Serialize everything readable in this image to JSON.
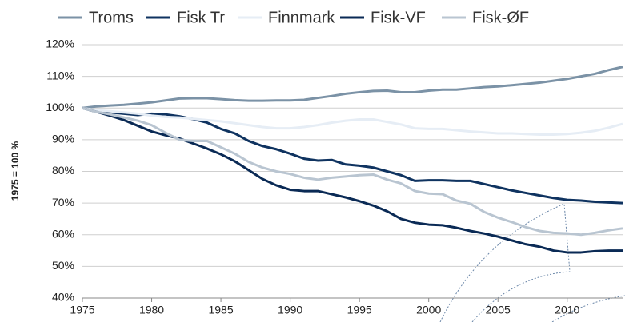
{
  "chart_data": {
    "type": "line",
    "y_label": "1975 = 100 %",
    "x": [
      1975,
      1976,
      1977,
      1978,
      1979,
      1980,
      1981,
      1982,
      1983,
      1984,
      1985,
      1986,
      1987,
      1988,
      1989,
      1990,
      1991,
      1992,
      1993,
      1994,
      1995,
      1996,
      1997,
      1998,
      1999,
      2000,
      2001,
      2002,
      2003,
      2004,
      2005,
      2006,
      2007,
      2008,
      2009,
      2010,
      2011,
      2012,
      2013,
      2014
    ],
    "series": [
      {
        "name": "Troms",
        "color": "#7b92a6",
        "values": [
          100,
          100.5,
          100.8,
          101,
          101.4,
          101.8,
          102.4,
          103,
          103.1,
          103.1,
          102.8,
          102.5,
          102.3,
          102.3,
          102.4,
          102.4,
          102.6,
          103.2,
          103.8,
          104.5,
          105,
          105.4,
          105.5,
          105,
          105,
          105.5,
          105.8,
          105.8,
          106.2,
          106.6,
          106.8,
          107.2,
          107.6,
          108,
          108.6,
          109.2,
          110,
          110.8,
          112,
          113
        ]
      },
      {
        "name": "Fisk Tr",
        "color": "#0f3360",
        "values": [
          100,
          99.2,
          98.6,
          98.2,
          97.8,
          98.2,
          98,
          97.4,
          96.5,
          95.4,
          93.4,
          92,
          89.6,
          88,
          87,
          85.6,
          84,
          83.4,
          83.6,
          82.2,
          81.8,
          81.2,
          80,
          78.8,
          77,
          77.2,
          77.2,
          77,
          77,
          76,
          75,
          74,
          73.2,
          72.4,
          71.6,
          71,
          70.8,
          70.4,
          70.2,
          70
        ]
      },
      {
        "name": "Finnmark",
        "color": "#e6edf5",
        "values": [
          100,
          99.3,
          99,
          98.6,
          98.2,
          97.6,
          97.2,
          97,
          96.6,
          96.2,
          95.8,
          95.2,
          94.6,
          94,
          93.6,
          93.6,
          94,
          94.6,
          95.4,
          96,
          96.4,
          96.4,
          95.6,
          94.8,
          93.6,
          93.4,
          93.4,
          93,
          92.6,
          92.3,
          92,
          92,
          91.8,
          91.6,
          91.6,
          91.8,
          92.2,
          92.8,
          93.8,
          95
        ]
      },
      {
        "name": "Fisk-VF",
        "color": "#0a2a55",
        "values": [
          100,
          98.8,
          97.6,
          96.2,
          94.4,
          92.6,
          91.4,
          90.4,
          88.8,
          87.2,
          85.4,
          83.2,
          80.4,
          77.6,
          75.6,
          74.2,
          73.8,
          73.8,
          72.8,
          71.8,
          70.6,
          69.2,
          67.4,
          65,
          63.8,
          63.2,
          63,
          62.2,
          61.2,
          60.4,
          59.4,
          58.2,
          57,
          56.2,
          55,
          54.4,
          54.4,
          54.8,
          55,
          55
        ]
      },
      {
        "name": "Fisk-ØF",
        "color": "#b9c5d1",
        "values": [
          100,
          98.8,
          98,
          97,
          96,
          94.6,
          92.2,
          90,
          89.6,
          89.6,
          87.6,
          85.6,
          83,
          81.2,
          80,
          79.2,
          78,
          77.4,
          78,
          78.4,
          78.8,
          79,
          77.4,
          76.2,
          73.8,
          73,
          72.8,
          70.8,
          69.8,
          67.2,
          65.4,
          64,
          62.4,
          61.2,
          60.6,
          60.4,
          60,
          60.6,
          61.4,
          62
        ]
      }
    ],
    "xlim": [
      1975,
      2014
    ],
    "xticks": [
      1975,
      1980,
      1985,
      1990,
      1995,
      2000,
      2005,
      2010
    ],
    "ylim": [
      40,
      120
    ],
    "yticks": [
      {
        "value": 40,
        "label": "40%"
      },
      {
        "value": 50,
        "label": "50%"
      },
      {
        "value": 60,
        "label": "60%"
      },
      {
        "value": 70,
        "label": "70%"
      },
      {
        "value": 80,
        "label": "80%"
      },
      {
        "value": 90,
        "label": "90%"
      },
      {
        "value": 100,
        "label": "100%"
      },
      {
        "value": 110,
        "label": "110%"
      },
      {
        "value": 120,
        "label": "120%"
      }
    ],
    "grid": true,
    "legend": "top"
  }
}
